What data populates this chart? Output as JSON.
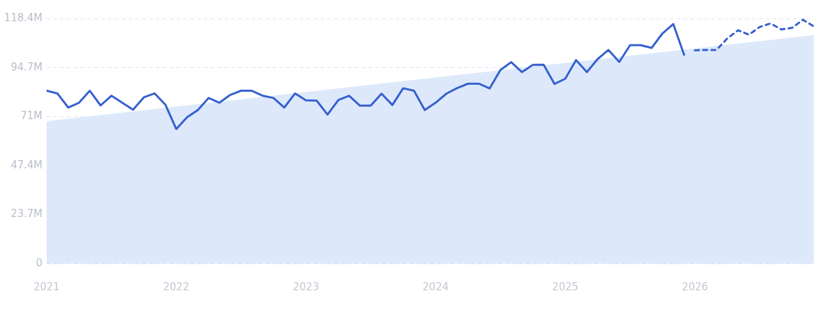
{
  "chart_data": {
    "type": "line",
    "xlim": [
      "2021-01",
      "2026-12"
    ],
    "xticks": [
      {
        "value": "2021-01",
        "label": "2021"
      },
      {
        "value": "2022-01",
        "label": "2022"
      },
      {
        "value": "2023-01",
        "label": "2023"
      },
      {
        "value": "2024-01",
        "label": "2024"
      },
      {
        "value": "2025-01",
        "label": "2025"
      },
      {
        "value": "2026-01",
        "label": "2026"
      }
    ],
    "ylim": [
      0,
      118.4
    ],
    "yticks": [
      0,
      {
        "value": 23.7,
        "label": "23.7M"
      },
      {
        "value": 47.4,
        "label": "47.4M"
      },
      {
        "value": 71,
        "label": "71M"
      },
      {
        "value": 94.7,
        "label": "94.7M"
      },
      {
        "value": 118.4,
        "label": "118.4M"
      }
    ],
    "grid": "y",
    "marker": "none",
    "series": [
      {
        "type": "area",
        "color": "#dde9fb",
        "x": [
          "2021-01",
          "2026-12"
        ],
        "values": [
          68.8,
          110.4
        ]
      },
      {
        "type": "line",
        "color": "#3560cf",
        "line_style": "solid",
        "x": [
          "2021-01",
          "2021-02",
          "2021-03",
          "2021-04",
          "2021-05",
          "2021-06",
          "2021-07",
          "2021-08",
          "2021-09",
          "2021-10",
          "2021-11",
          "2021-12",
          "2022-01",
          "2022-02",
          "2022-03",
          "2022-04",
          "2022-05",
          "2022-06",
          "2022-07",
          "2022-08",
          "2022-09",
          "2022-10",
          "2022-11",
          "2022-12",
          "2023-01",
          "2023-02",
          "2023-03",
          "2023-04",
          "2023-05",
          "2023-06",
          "2023-07",
          "2023-08",
          "2023-09",
          "2023-10",
          "2023-11",
          "2023-12",
          "2024-01",
          "2024-02",
          "2024-03",
          "2024-04",
          "2024-05",
          "2024-06",
          "2024-07",
          "2024-08",
          "2024-09",
          "2024-10",
          "2024-11",
          "2024-12",
          "2025-01",
          "2025-02",
          "2025-03",
          "2025-04",
          "2025-05",
          "2025-06",
          "2025-07",
          "2025-08",
          "2025-09",
          "2025-10",
          "2025-11",
          "2025-12"
        ],
        "values": [
          83.5,
          82.2,
          75.4,
          77.7,
          83.5,
          76.4,
          81.1,
          77.7,
          74.3,
          80.3,
          82.2,
          76.7,
          65.0,
          70.7,
          74.2,
          80.0,
          77.7,
          81.5,
          83.5,
          83.5,
          81.1,
          80.0,
          75.4,
          82.2,
          78.9,
          78.7,
          72.0,
          79.0,
          81.1,
          76.3,
          76.3,
          82.1,
          76.6,
          84.7,
          83.5,
          74.2,
          77.7,
          82.1,
          84.8,
          86.9,
          86.9,
          84.6,
          93.5,
          97.3,
          92.5,
          96.0,
          96.1,
          86.8,
          89.3,
          98.3,
          92.5,
          98.8,
          103.2,
          97.4,
          105.5,
          105.5,
          104.2,
          111.2,
          115.7,
          100.9
        ]
      },
      {
        "type": "line",
        "color": "#3560cf",
        "line_style": "dashed",
        "x": [
          "2026-01",
          "2026-02",
          "2026-03",
          "2026-04",
          "2026-05",
          "2026-06",
          "2026-07",
          "2026-08",
          "2026-09",
          "2026-10",
          "2026-11",
          "2026-12"
        ],
        "values": [
          103.0,
          103.2,
          103.2,
          108.8,
          112.7,
          110.6,
          114.3,
          116.0,
          113.1,
          113.9,
          117.8,
          114.6
        ]
      }
    ]
  }
}
